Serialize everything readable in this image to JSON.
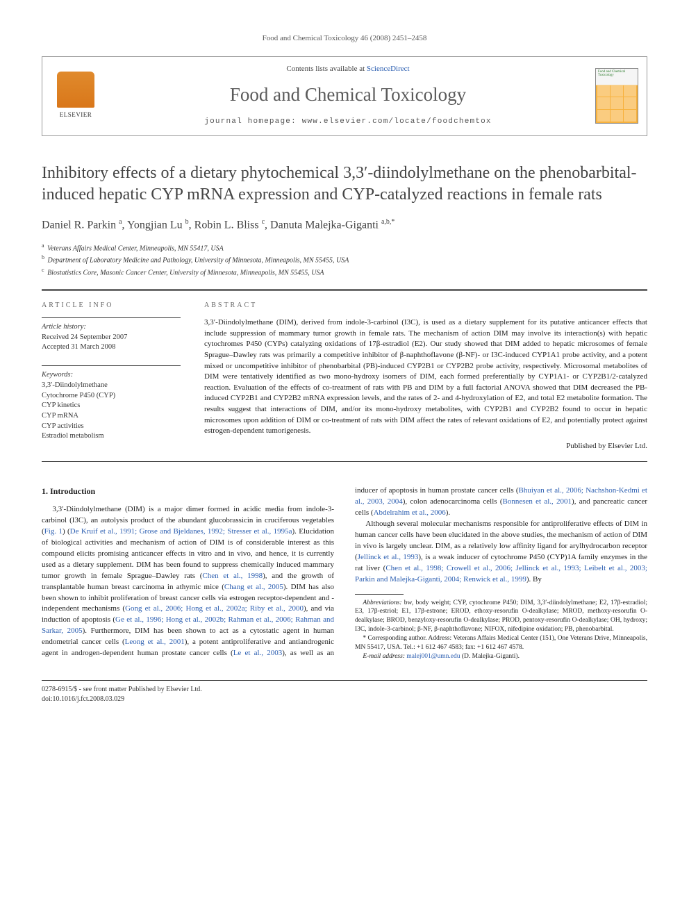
{
  "running_header": "Food and Chemical Toxicology 46 (2008) 2451–2458",
  "banner": {
    "elsevier": "ELSEVIER",
    "contents_prefix": "Contents lists available at ",
    "contents_link": "ScienceDirect",
    "journal_name": "Food and Chemical Toxicology",
    "homepage_prefix": "journal homepage: ",
    "homepage_url": "www.elsevier.com/locate/foodchemtox",
    "cover_title": "Food and Chemical Toxicology"
  },
  "title": "Inhibitory effects of a dietary phytochemical 3,3′-diindolylmethane on the phenobarbital-induced hepatic CYP mRNA expression and CYP-catalyzed reactions in female rats",
  "authors_html": "Daniel R. Parkin <sup>a</sup>, Yongjian Lu <sup>b</sup>, Robin L. Bliss <sup>c</sup>, Danuta Malejka-Giganti <sup>a,b,*</sup>",
  "affiliations": [
    {
      "sup": "a",
      "text": "Veterans Affairs Medical Center, Minneapolis, MN 55417, USA"
    },
    {
      "sup": "b",
      "text": "Department of Laboratory Medicine and Pathology, University of Minnesota, Minneapolis, MN 55455, USA"
    },
    {
      "sup": "c",
      "text": "Biostatistics Core, Masonic Cancer Center, University of Minnesota, Minneapolis, MN 55455, USA"
    }
  ],
  "article_info": {
    "head": "ARTICLE INFO",
    "history_label": "Article history:",
    "received": "Received 24 September 2007",
    "accepted": "Accepted 31 March 2008",
    "keywords_label": "Keywords:",
    "keywords": [
      "3,3′-Diindolylmethane",
      "Cytochrome P450 (CYP)",
      "CYP kinetics",
      "CYP mRNA",
      "CYP activities",
      "Estradiol metabolism"
    ]
  },
  "abstract": {
    "head": "ABSTRACT",
    "text": "3,3′-Diindolylmethane (DIM), derived from indole-3-carbinol (I3C), is used as a dietary supplement for its putative anticancer effects that include suppression of mammary tumor growth in female rats. The mechanism of action DIM may involve its interaction(s) with hepatic cytochromes P450 (CYPs) catalyzing oxidations of 17β-estradiol (E2). Our study showed that DIM added to hepatic microsomes of female Sprague–Dawley rats was primarily a competitive inhibitor of β-naphthoflavone (β-NF)- or I3C-induced CYP1A1 probe activity, and a potent mixed or uncompetitive inhibitor of phenobarbital (PB)-induced CYP2B1 or CYP2B2 probe activity, respectively. Microsomal metabolites of DIM were tentatively identified as two mono-hydroxy isomers of DIM, each formed preferentially by CYP1A1- or CYP2B1/2-catalyzed reaction. Evaluation of the effects of co-treatment of rats with PB and DIM by a full factorial ANOVA showed that DIM decreased the PB-induced CYP2B1 and CYP2B2 mRNA expression levels, and the rates of 2- and 4-hydroxylation of E2, and total E2 metabolite formation. The results suggest that interactions of DIM, and/or its mono-hydroxy metabolites, with CYP2B1 and CYP2B2 found to occur in hepatic microsomes upon addition of DIM or co-treatment of rats with DIM affect the rates of relevant oxidations of E2, and potentially protect against estrogen-dependent tumorigenesis.",
    "publisher": "Published by Elsevier Ltd."
  },
  "introduction": {
    "heading": "1. Introduction",
    "p1_a": "3,3′-Diindolylmethane (DIM) is a major dimer formed in acidic media from indole-3-carbinol (I3C), an autolysis product of the abundant glucobrassicin in cruciferous vegetables (",
    "p1_fig": "Fig. 1",
    "p1_b": ") (",
    "p1_refs1": "De Kruif et al., 1991; Grose and Bjeldanes, 1992; Stresser et al., 1995a",
    "p1_c": "). Elucidation of biological activities and mechanism of action of DIM is of considerable interest as this compound elicits promising anticancer effects in vitro and in vivo, and hence, it is currently used as a dietary supplement. DIM has been found to suppress chemically induced mammary tumor growth in female Sprague–Dawley rats (",
    "p1_ref_chen": "Chen et al., 1998",
    "p1_d": "), and the growth of transplantable human",
    "p1_e": "breast carcinoma in athymic mice (",
    "p1_ref_chang": "Chang et al., 2005",
    "p1_f": "). DIM has also been shown to inhibit proliferation of breast cancer cells via estrogen receptor-dependent and -independent mechanisms (",
    "p1_refs2": "Gong et al., 2006; Hong et al., 2002a; Riby et al., 2000",
    "p1_g": "), and via induction of apoptosis (",
    "p1_refs3": "Ge et al., 1996; Hong et al., 2002b; Rahman et al., 2006; Rahman and Sarkar, 2005",
    "p1_h": "). Furthermore, DIM has been shown to act as a cytostatic agent in human endometrial cancer cells (",
    "p1_ref_leong": "Leong et al., 2001",
    "p1_i": "), a potent antiproliferative and antiandrogenic agent in androgen-dependent human prostate cancer cells (",
    "p1_ref_le": "Le et al., 2003",
    "p1_j": "), as well as an inducer of apoptosis in human prostate cancer cells (",
    "p1_refs4": "Bhuiyan et al., 2006; Nachshon-Kedmi et al., 2003, 2004",
    "p1_k": "), colon adenocarcinoma cells (",
    "p1_ref_bonn": "Bonnesen et al., 2001",
    "p1_l": "), and pancreatic cancer cells (",
    "p1_ref_abdel": "Abdelrahim et al., 2006",
    "p1_m": ").",
    "p2_a": "Although several molecular mechanisms responsible for antiproliferative effects of DIM in human cancer cells have been elucidated in the above studies, the mechanism of action of DIM in vivo is largely unclear. DIM, as a relatively low affinity ligand for arylhydrocarbon receptor (",
    "p2_ref_jell": "Jellinck et al., 1993",
    "p2_b": "), is a weak inducer of cytochrome P450 (CYP)1A family enzymes in the rat liver (",
    "p2_refs5": "Chen et al., 1998; Crowell et al., 2006; Jellinck et al., 1993; Leibelt et al., 2003; Parkin and Malejka-Giganti, 2004; Renwick et al., 1999",
    "p2_c": "). By"
  },
  "footnotes": {
    "abbrev_label": "Abbreviations:",
    "abbrev_text": " bw, body weight; CYP, cytochrome P450; DIM, 3,3′-diindolylmethane; E2, 17β-estradiol; E3, 17β-estriol; E1, 17β-estrone; EROD, ethoxy-resorufin O-dealkylase; MROD, methoxy-resorufin O-dealkylase; BROD, benzyloxy-resorufin O-dealkylase; PROD, pentoxy-resorufin O-dealkylase; OH, hydroxy; I3C, indole-3-carbinol; β-NF, β-naphthoflavone; NIFOX, nifedipine oxidation; PB, phenobarbital.",
    "corr_label": "* Corresponding author.",
    "corr_text": " Address: Veterans Affairs Medical Center (151), One Veterans Drive, Minneapolis, MN 55417, USA. Tel.: +1 612 467 4583; fax: +1 612 467 4578.",
    "email_label": "E-mail address:",
    "email": "malej001@umn.edu",
    "email_tail": " (D. Malejka-Giganti)."
  },
  "bottom": {
    "front_matter": "0278-6915/$ - see front matter Published by Elsevier Ltd.",
    "doi": "doi:10.1016/j.fct.2008.03.029"
  },
  "colors": {
    "link": "#2a5db0",
    "text": "#222",
    "muted": "#555",
    "rule": "#333",
    "journal_gray": "#5a5a5a"
  }
}
